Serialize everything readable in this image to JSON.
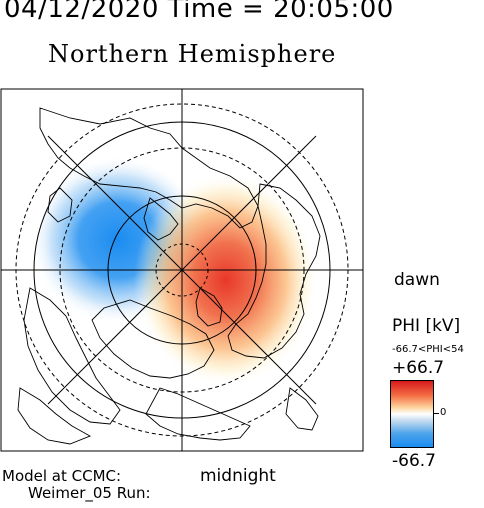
{
  "header": {
    "datetime": "04/12/2020 Time = 20:05:00",
    "hemisphere": "Northern Hemisphere"
  },
  "labels": {
    "dawn": "dawn",
    "midnight": "midnight",
    "model_line1": "Model at CCMC:",
    "model_line2": "Weimer_05 Run:"
  },
  "colorbar": {
    "title": "PHI [kV]",
    "range_text": "-66.7<PHI<54",
    "max_label": "+66.7",
    "zero_label": "0",
    "min_label": "-66.7",
    "colors": {
      "positive": "#d7191c",
      "zero": "#ffffff",
      "negative": "#1a8cf0"
    }
  },
  "map": {
    "projection": "polar",
    "pole": "north",
    "positive_cell_side": "dawn",
    "negative_cell_side": "dusk"
  }
}
